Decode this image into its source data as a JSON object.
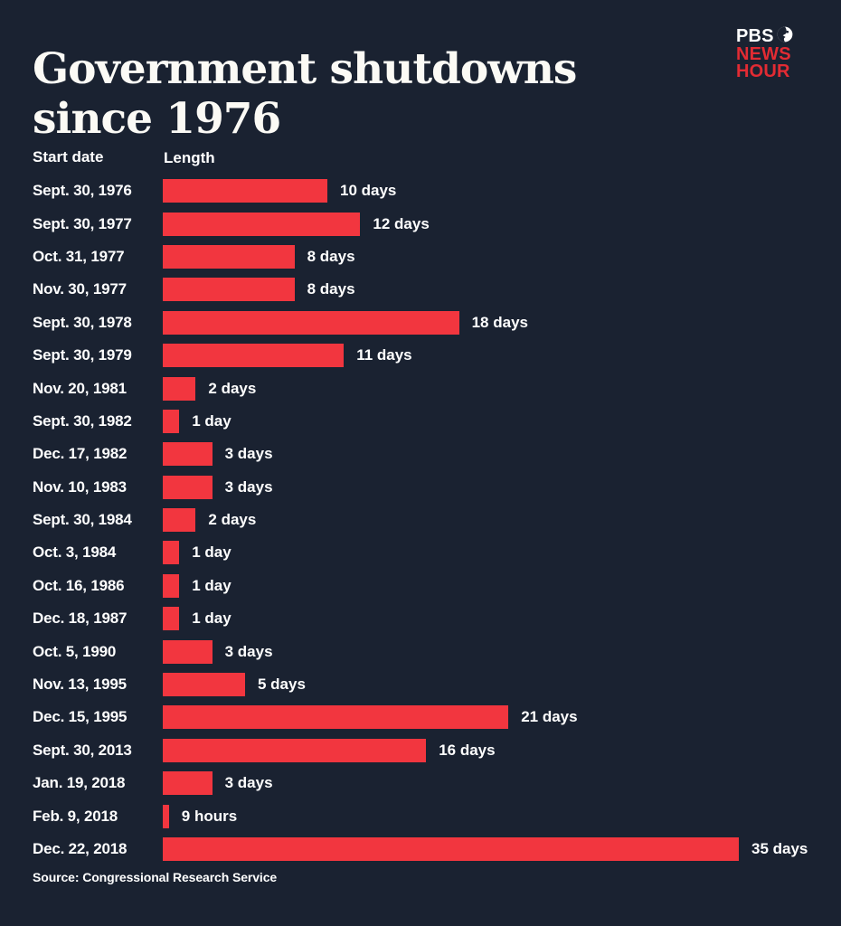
{
  "header": {
    "title": "Government shutdowns since 1976",
    "logo": {
      "pbs": "PBS",
      "news": "NEWS",
      "hour": "HOUR"
    }
  },
  "columns": {
    "start_date": "Start date",
    "length": "Length"
  },
  "source": "Source: Congressional Research Service",
  "colors": {
    "background": "#1a2231",
    "bar": "#f2363f",
    "logo_red": "#e22b33",
    "text": "#ffffff"
  },
  "chart_data": {
    "type": "bar",
    "orientation": "horizontal",
    "title": "Government shutdowns since 1976",
    "xlabel": "Length",
    "ylabel": "Start date",
    "unit": "days",
    "xlim": [
      0,
      35
    ],
    "grid": false,
    "legend": false,
    "rows": [
      {
        "date": "Sept. 30, 1976",
        "days": 10,
        "label": "10 days"
      },
      {
        "date": "Sept. 30, 1977",
        "days": 12,
        "label": "12 days"
      },
      {
        "date": "Oct. 31, 1977",
        "days": 8,
        "label": "8 days"
      },
      {
        "date": "Nov. 30, 1977",
        "days": 8,
        "label": "8 days"
      },
      {
        "date": "Sept. 30, 1978",
        "days": 18,
        "label": "18 days"
      },
      {
        "date": "Sept. 30, 1979",
        "days": 11,
        "label": "11 days"
      },
      {
        "date": "Nov. 20, 1981",
        "days": 2,
        "label": "2 days"
      },
      {
        "date": "Sept. 30, 1982",
        "days": 1,
        "label": "1 day"
      },
      {
        "date": "Dec. 17, 1982",
        "days": 3,
        "label": "3 days"
      },
      {
        "date": "Nov. 10, 1983",
        "days": 3,
        "label": "3 days"
      },
      {
        "date": "Sept. 30, 1984",
        "days": 2,
        "label": "2 days"
      },
      {
        "date": "Oct. 3, 1984",
        "days": 1,
        "label": "1 day"
      },
      {
        "date": "Oct. 16, 1986",
        "days": 1,
        "label": "1 day"
      },
      {
        "date": "Dec. 18, 1987",
        "days": 1,
        "label": "1 day"
      },
      {
        "date": "Oct. 5, 1990",
        "days": 3,
        "label": "3 days"
      },
      {
        "date": "Nov. 13, 1995",
        "days": 5,
        "label": "5 days"
      },
      {
        "date": "Dec. 15, 1995",
        "days": 21,
        "label": "21 days"
      },
      {
        "date": "Sept. 30, 2013",
        "days": 16,
        "label": "16 days"
      },
      {
        "date": "Jan. 19, 2018",
        "days": 3,
        "label": "3 days"
      },
      {
        "date": "Feb. 9, 2018",
        "days": 0.375,
        "label": "9 hours"
      },
      {
        "date": "Dec. 22, 2018",
        "days": 35,
        "label": "35 days"
      }
    ]
  }
}
